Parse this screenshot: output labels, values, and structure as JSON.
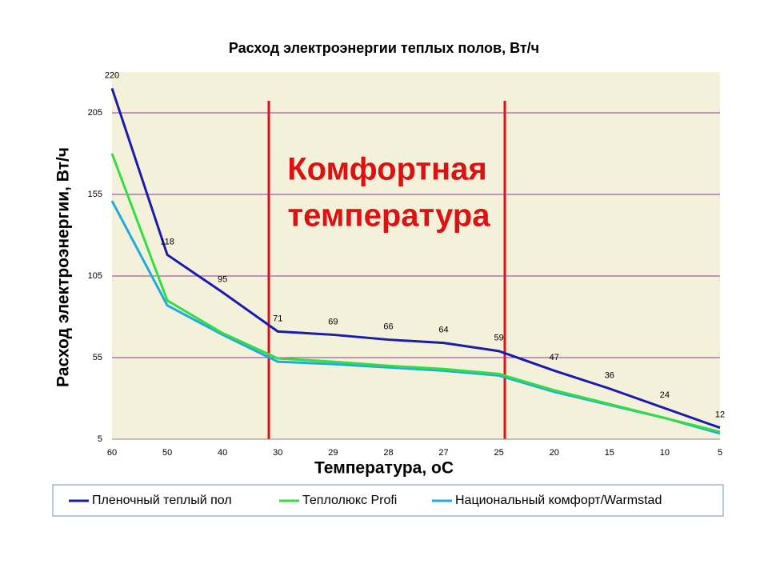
{
  "chart_data": {
    "type": "line",
    "title": "Расход электроэнергии теплых полов, Вт/ч",
    "x_label": "Температура, оС",
    "y_label": "Расход электроэнергии, Вт/ч",
    "annotation": [
      "Комфортная",
      "температура"
    ],
    "categories": [
      "60",
      "50",
      "40",
      "30",
      "29",
      "28",
      "27",
      "25",
      "20",
      "15",
      "10",
      "5"
    ],
    "ylim": [
      5,
      230
    ],
    "yticks": [
      5,
      55,
      105,
      155,
      205
    ],
    "grid": true,
    "legend": "bottom",
    "series": [
      {
        "name": "Пленочный теплый пол",
        "color": "#1a1ab0",
        "values": [
          220,
          118,
          95,
          71,
          69,
          66,
          64,
          59,
          47,
          36,
          24,
          12
        ],
        "data_labels": true
      },
      {
        "name": "Теплолюкс Profi",
        "color": "#33dd44",
        "values": [
          180,
          90,
          70,
          54.5,
          52.5,
          50,
          48,
          45,
          35,
          26.5,
          18,
          9.5
        ]
      },
      {
        "name": "Национальный комфорт/Warmstad",
        "color": "#22aadd",
        "values": [
          151,
          87,
          69,
          52.5,
          51,
          49,
          47,
          44,
          34,
          26,
          18,
          8.5
        ]
      }
    ]
  }
}
